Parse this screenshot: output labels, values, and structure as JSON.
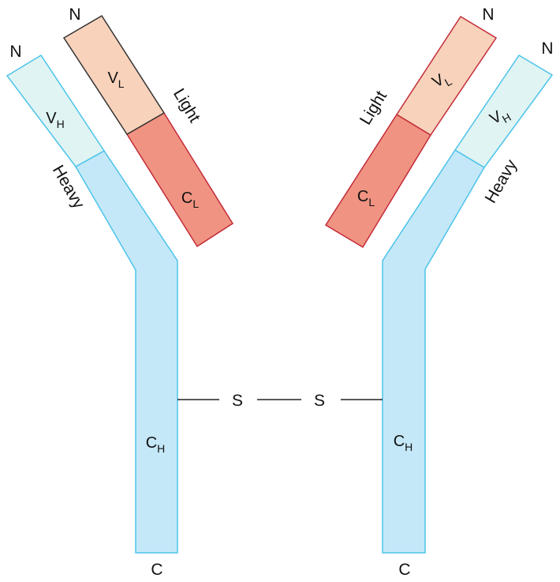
{
  "colors": {
    "heavy_constant_fill": "#c4e8f8",
    "heavy_variable_fill": "#dff4f3",
    "heavy_stroke": "#4cc3ea",
    "light_variable_fill": "#f8d2bb",
    "light_constant_fill": "#f09382",
    "light_stroke": "#c32b38",
    "light_variable_stroke_left": "#333333",
    "bond_line": "#222222"
  },
  "left": {
    "heavy_n": "N",
    "light_n": "N",
    "heavy_label": "Heavy",
    "light_label": "Light",
    "vh": {
      "main": "V",
      "sub": "H"
    },
    "vl": {
      "main": "V",
      "sub": "L"
    },
    "cl": {
      "main": "C",
      "sub": "L"
    },
    "ch": {
      "main": "C",
      "sub": "H"
    },
    "c_terminal": "C"
  },
  "right": {
    "heavy_n": "N",
    "light_n": "N",
    "heavy_label": "Heavy",
    "light_label": "Light",
    "vh": {
      "main": "V",
      "sub": "H"
    },
    "vl": {
      "main": "V",
      "sub": "L"
    },
    "cl": {
      "main": "C",
      "sub": "L"
    },
    "ch": {
      "main": "C",
      "sub": "H"
    },
    "c_terminal": "C"
  },
  "disulfide": {
    "s_left": "S",
    "s_right": "S"
  }
}
